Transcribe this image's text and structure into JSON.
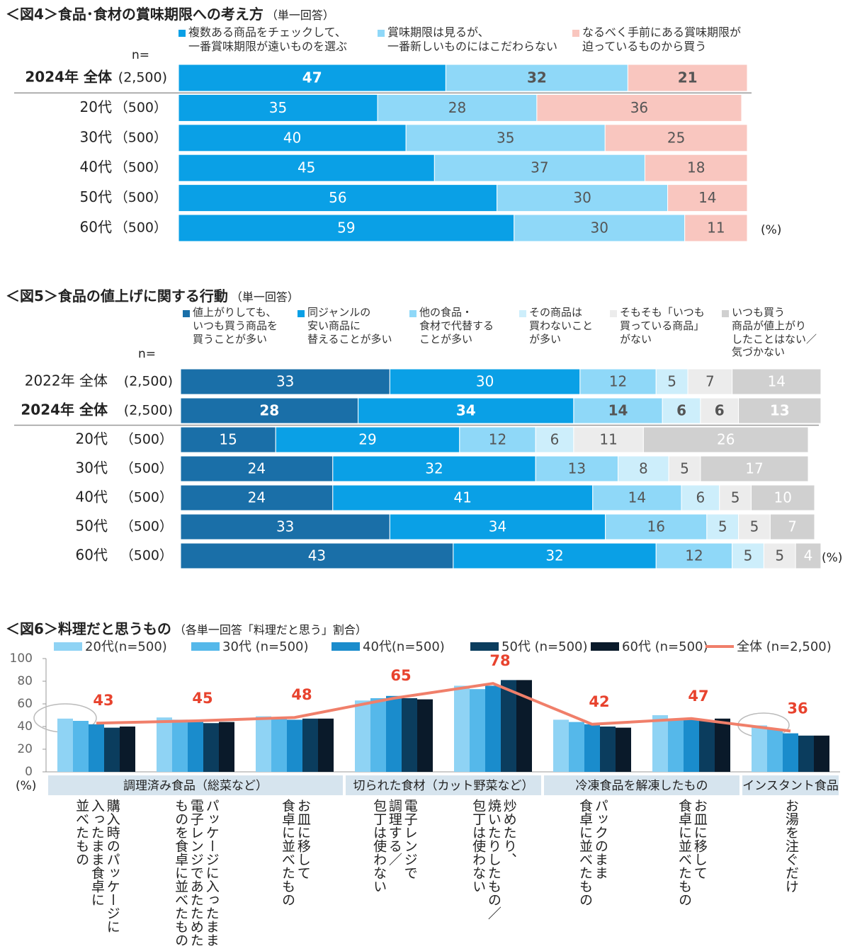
{
  "chart_data": [
    {
      "type": "stacked",
      "title": "＜図4＞食品･食材の賞味期限への考え方",
      "subtitle": "（単一回答）",
      "n_label": "n=",
      "unit_label": "(%)",
      "categories": [
        "2024年 全体",
        "20代",
        "30代",
        "40代",
        "50代",
        "60代"
      ],
      "n": [
        "(2,500)",
        "（500）",
        "（500）",
        "（500）",
        "（500）",
        "（500）"
      ],
      "bold_category": 0,
      "xlim": [
        0,
        100
      ],
      "series": [
        {
          "name": "複数ある商品をチェックして、\n一番賞味期限が遠いものを選ぶ",
          "color": "#0aa0e6",
          "values": [
            47,
            35,
            40,
            45,
            56,
            59
          ]
        },
        {
          "name": "賞味期限は見るが、\n一番新しいものにはこだわらない",
          "color": "#8fd8f8",
          "values": [
            32,
            28,
            35,
            37,
            30,
            30
          ]
        },
        {
          "name": "なるべく手前にある賞味期限が\n迫っているものから買う",
          "color": "#f9c6bf",
          "values": [
            21,
            36,
            25,
            18,
            14,
            11
          ]
        }
      ]
    },
    {
      "type": "stacked",
      "title": "＜図5＞食品の値上げに関する行動",
      "subtitle": "（単一回答）",
      "n_label": "n=",
      "unit_label": "(%)",
      "categories": [
        "2022年 全体",
        "2024年 全体",
        "20代",
        "30代",
        "40代",
        "50代",
        "60代"
      ],
      "n": [
        "(2,500)",
        "(2,500)",
        "（500）",
        "（500）",
        "（500）",
        "（500）",
        "（500）"
      ],
      "bold_category": 1,
      "xlim": [
        0,
        100
      ],
      "series": [
        {
          "name": "値上がりしても、\nいつも買う商品を\n買うことが多い",
          "color": "#1a6fa8",
          "values": [
            33,
            28,
            15,
            24,
            24,
            33,
            43
          ]
        },
        {
          "name": "同ジャンルの\n安い商品に\n替えることが多い",
          "color": "#0aa0e6",
          "values": [
            30,
            34,
            29,
            32,
            41,
            34,
            32
          ]
        },
        {
          "name": "他の食品・\n食材で代替する\nことが多い",
          "color": "#8fd8f8",
          "values": [
            12,
            14,
            12,
            13,
            14,
            16,
            12
          ]
        },
        {
          "name": "その商品は\n買わないこと\nが多い",
          "color": "#cdeefb",
          "values": [
            5,
            6,
            6,
            8,
            6,
            5,
            5
          ]
        },
        {
          "name": "そもそも「いつも\n買っている商品」\nがない",
          "color": "#ececec",
          "values": [
            7,
            6,
            11,
            5,
            5,
            5,
            5
          ]
        },
        {
          "name": "いつも買う\n商品が値上がり\nしたことはない／\n気づかない",
          "color": "#d0d0d0",
          "values": [
            14,
            13,
            26,
            17,
            10,
            7,
            4
          ]
        }
      ]
    },
    {
      "type": "bar",
      "title": "＜図6＞料理だと思うもの",
      "subtitle": "（各単一回答「料理だと思う」割合）",
      "unit_label": "(%)",
      "ylim": [
        0,
        100
      ],
      "yticks": [
        0,
        20,
        40,
        60,
        80,
        100
      ],
      "groups": [
        {
          "label": "調理済み食品（総菜など）",
          "span": 3
        },
        {
          "label": "切られた食材（カット野菜など）",
          "span": 2
        },
        {
          "label": "冷凍食品を解凍したもの",
          "span": 2
        },
        {
          "label": "インスタント食品",
          "span": 1
        }
      ],
      "categories": [
        "購入時のパッケージに\n入ったまま食卓に\n並べたもの",
        "パッケージに入ったまま\n電子レンジであたためた\nものを食卓に並べたもの",
        "お皿に移して\n食卓に並べたもの",
        "電子レンジで\n調理する／\n包丁は使わない",
        "炒めたり、\n焼いたりしたもの／\n包丁は使わない",
        "パックのまま\n食卓に並べたもの",
        "お皿に移して\n食卓に並べたもの",
        "お湯を注ぐだけ"
      ],
      "series": [
        {
          "name": "20代(n=500)",
          "color": "#8fd3f4",
          "values": [
            47,
            48,
            49,
            63,
            76,
            46,
            50,
            41
          ]
        },
        {
          "name": "30代 (n=500)",
          "color": "#55b8ea",
          "values": [
            45,
            46,
            47,
            65,
            73,
            44,
            47,
            38
          ]
        },
        {
          "name": "40代(n=500)",
          "color": "#1a8ccc",
          "values": [
            42,
            44,
            46,
            67,
            76,
            42,
            47,
            34
          ]
        },
        {
          "name": "50代 (n=500)",
          "color": "#0b3d5e",
          "values": [
            39,
            43,
            47,
            65,
            81,
            40,
            45,
            32
          ]
        },
        {
          "name": "60代 (n=500)",
          "color": "#0a1a2a",
          "values": [
            40,
            44,
            47,
            64,
            81,
            39,
            47,
            32
          ]
        },
        {
          "name": "全体 (n=2,500)",
          "type": "line",
          "color": "#f07f6a",
          "label_color": "#e8432e",
          "values": [
            43,
            45,
            48,
            65,
            78,
            42,
            47,
            36
          ]
        }
      ]
    }
  ]
}
